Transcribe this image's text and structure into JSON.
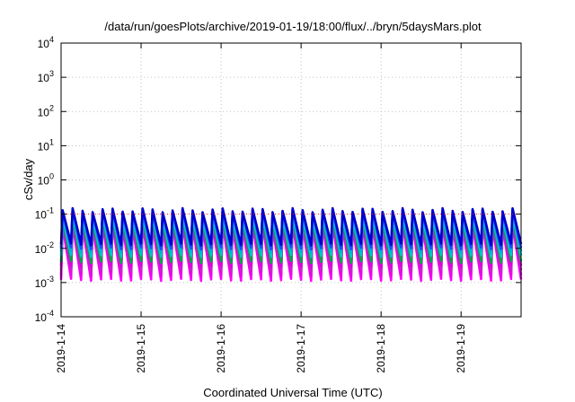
{
  "chart_data": {
    "type": "line",
    "title": "/data/run/goesPlots/archive/2019-01-19/18:00/flux/../bryn/5daysMars.plot",
    "xlabel": "Coordinated Universal Time (UTC)",
    "ylabel": "cSv/day",
    "yscale": "log",
    "ylim": [
      0.0001,
      10000
    ],
    "y_ticks": [
      {
        "value": 0.0001,
        "base": "10",
        "exp": "-4"
      },
      {
        "value": 0.001,
        "base": "10",
        "exp": "-3"
      },
      {
        "value": 0.01,
        "base": "10",
        "exp": "-2"
      },
      {
        "value": 0.1,
        "base": "10",
        "exp": "-1"
      },
      {
        "value": 1,
        "base": "10",
        "exp": "0"
      },
      {
        "value": 10,
        "base": "10",
        "exp": "1"
      },
      {
        "value": 100,
        "base": "10",
        "exp": "2"
      },
      {
        "value": 1000,
        "base": "10",
        "exp": "3"
      },
      {
        "value": 10000,
        "base": "10",
        "exp": "4"
      }
    ],
    "xlim": [
      "2019-01-14 00:00",
      "2019-01-19 18:00"
    ],
    "x_ticks": [
      "2019-1-14",
      "2019-1-15",
      "2019-1-16",
      "2019-1-17",
      "2019-1-18",
      "2019-1-19"
    ],
    "grid": true,
    "legend": "none",
    "series": [
      {
        "color": "#ff00ff",
        "min": 0.0012,
        "max": 0.045
      },
      {
        "color": "#ee00ee",
        "min": 0.0016,
        "max": 0.055
      },
      {
        "color": "#cc22cc",
        "min": 0.0022,
        "max": 0.06
      },
      {
        "color": "#dd00dd",
        "min": 0.003,
        "max": 0.07
      },
      {
        "color": "#00aa44",
        "min": 0.004,
        "max": 0.07
      },
      {
        "color": "#00c8c8",
        "min": 0.006,
        "max": 0.085
      },
      {
        "color": "#00b0e0",
        "min": 0.008,
        "max": 0.1
      },
      {
        "color": "#2244ff",
        "min": 0.01,
        "max": 0.12
      },
      {
        "color": "#0000cc",
        "min": 0.013,
        "max": 0.13
      }
    ],
    "reference_line": {
      "value": 0.1,
      "color": "#ff0000"
    },
    "cycles_per_day": 8
  }
}
